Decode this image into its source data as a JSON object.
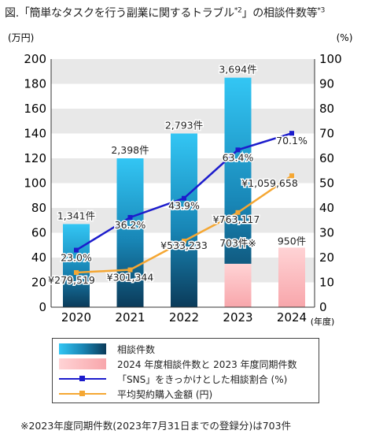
{
  "title": {
    "prefix": "図.「簡単なタスクを行う副業に関するトラブル",
    "sup1": "*2",
    "suffix": "」の相談件数等",
    "sup2": "*3"
  },
  "axis": {
    "left_unit": "(万円)",
    "right_unit": "(%)",
    "x_unit": "(年度)"
  },
  "legend": [
    {
      "label": "相談件数",
      "kind": "bar-blue"
    },
    {
      "label": "2024 年度相談件数と 2023 年度同期件数",
      "kind": "bar-pink"
    },
    {
      "label": "「SNS」をきっかけとした相談割合 (%)",
      "kind": "line-blue"
    },
    {
      "label": "平均契約購入金額 (円)",
      "kind": "line-orange"
    }
  ],
  "footnote": "※2023年度同期件数(2023年7月31日までの登録分)は703件",
  "colors": {
    "bar_top": "#33c6f4",
    "bar_bottom": "#0b3b5a",
    "pink": "#f8a6ab",
    "sns_line": "#1c1ccc",
    "amount_line": "#f5a733",
    "grid_band": "#e8e8e8"
  },
  "chart_data": {
    "type": "bar",
    "categories": [
      "2020",
      "2021",
      "2022",
      "2023",
      "2024"
    ],
    "left_axis": {
      "min": 0,
      "max": 200,
      "ticks": [
        0,
        20,
        40,
        60,
        80,
        100,
        120,
        140,
        160,
        180,
        200
      ],
      "label": "(万円)"
    },
    "right_axis": {
      "min": 0,
      "max": 100,
      "ticks": [
        0,
        10,
        20,
        30,
        40,
        50,
        60,
        70,
        80,
        90,
        100
      ],
      "label": "(%)"
    },
    "series": [
      {
        "name": "相談件数",
        "kind": "bar",
        "axis": "left",
        "categories": [
          "2020",
          "2021",
          "2022",
          "2023"
        ],
        "bar_heights": [
          67,
          120,
          140,
          185
        ],
        "labels": [
          "1,341件",
          "2,398件",
          "2,793件",
          "3,694件"
        ]
      },
      {
        "name": "2024 年度相談件数と 2023 年度同期件数",
        "kind": "bar",
        "axis": "left",
        "categories": [
          "2023",
          "2024"
        ],
        "bar_heights": [
          35,
          48
        ],
        "labels": [
          "703件※",
          "950件"
        ]
      },
      {
        "name": "「SNS」をきっかけとした相談割合 (%)",
        "kind": "line",
        "axis": "right",
        "categories": [
          "2020",
          "2021",
          "2022",
          "2023",
          "2024"
        ],
        "values": [
          23.0,
          36.2,
          43.9,
          63.4,
          70.1
        ],
        "labels": [
          "23.0%",
          "36.2%",
          "43.9%",
          "63.4%",
          "70.1%"
        ]
      },
      {
        "name": "平均契約購入金額 (円)",
        "kind": "line",
        "axis": "left",
        "categories": [
          "2020",
          "2021",
          "2022",
          "2023",
          "2024"
        ],
        "values": [
          27.9519,
          30.1344,
          53.3233,
          76.3117,
          105.9658
        ],
        "labels": [
          "¥279,519",
          "¥301,344",
          "¥533,233",
          "¥763,117",
          "¥1,059,658"
        ]
      }
    ],
    "grid": "alternating bands",
    "legend_position": "bottom"
  }
}
